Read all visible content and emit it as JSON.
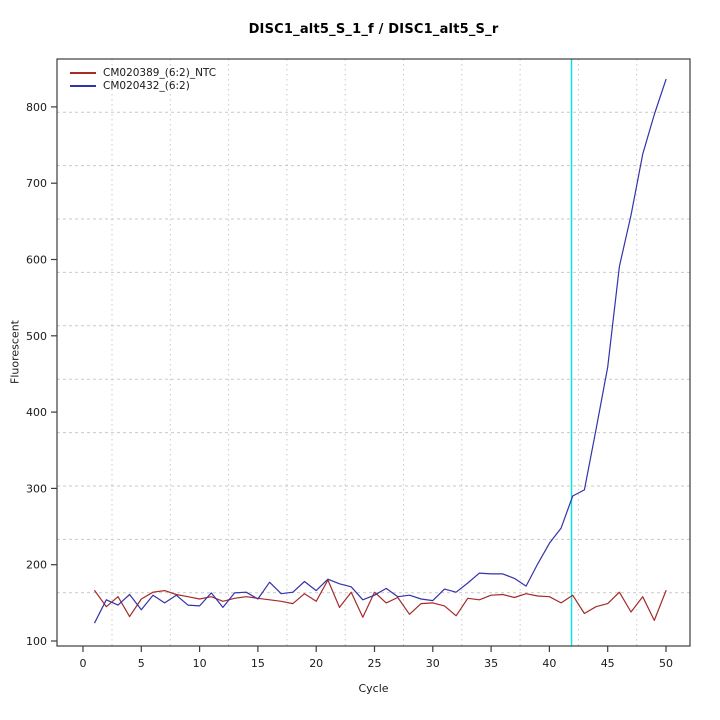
{
  "chart_data": {
    "type": "line",
    "title": "DISC1_alt5_S_1_f / DISC1_alt5_S_r",
    "xlabel": "Cycle",
    "ylabel": "Fluorescent",
    "x": [
      1,
      2,
      3,
      4,
      5,
      6,
      7,
      8,
      9,
      10,
      11,
      12,
      13,
      14,
      15,
      16,
      17,
      18,
      19,
      20,
      21,
      22,
      23,
      24,
      25,
      26,
      27,
      28,
      29,
      30,
      31,
      32,
      33,
      34,
      35,
      36,
      37,
      38,
      39,
      40,
      41,
      42,
      43,
      44,
      45,
      46,
      47,
      48,
      49,
      50
    ],
    "series": [
      {
        "name": "CM020389_(6:2)_NTC",
        "color": "#A52A2A",
        "values": [
          166,
          145,
          158,
          132,
          155,
          164,
          166,
          161,
          158,
          155,
          158,
          152,
          156,
          158,
          156,
          154,
          152,
          149,
          162,
          152,
          180,
          144,
          164,
          131,
          164,
          150,
          157,
          135,
          149,
          150,
          146,
          133,
          156,
          154,
          160,
          161,
          157,
          162,
          159,
          158,
          150,
          160,
          136,
          145,
          149,
          164,
          138,
          158,
          127,
          166
        ]
      },
      {
        "name": "CM020432_(6:2)",
        "color": "#3333AA",
        "values": [
          124,
          154,
          147,
          161,
          141,
          160,
          150,
          160,
          147,
          146,
          163,
          144,
          163,
          164,
          155,
          177,
          162,
          164,
          178,
          166,
          181,
          175,
          171,
          154,
          160,
          169,
          158,
          160,
          155,
          153,
          168,
          164,
          176,
          189,
          188,
          188,
          182,
          172,
          201,
          228,
          248,
          290,
          298,
          377,
          459,
          591,
          658,
          738,
          790,
          836
        ]
      }
    ],
    "threshold_line": {
      "cycle": 41.9,
      "color": "#00E5E5"
    },
    "axes": {
      "x_ticks": [
        0,
        5,
        10,
        15,
        20,
        25,
        30,
        35,
        40,
        45,
        50
      ],
      "y_ticks": [
        100,
        200,
        300,
        400,
        500,
        600,
        700,
        800
      ],
      "xlim": [
        0,
        50
      ],
      "ylim": [
        100,
        800
      ]
    },
    "grid": "dotted-lightgray",
    "legend_position": "top-left"
  }
}
